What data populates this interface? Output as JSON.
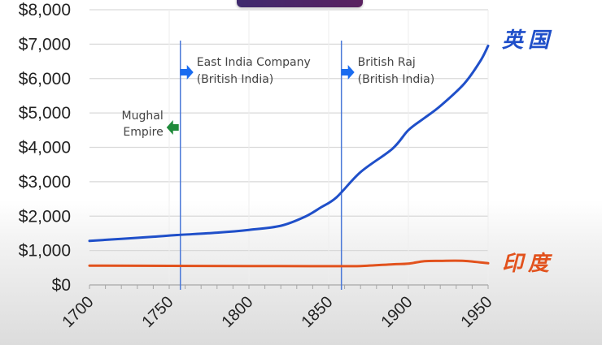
{
  "chart_data": {
    "type": "line",
    "title": "",
    "xlabel": "",
    "ylabel": "",
    "x_ticks": [
      "1700",
      "1750",
      "1800",
      "1850",
      "1900",
      "1950"
    ],
    "y_ticks": [
      "$0",
      "$1,000",
      "$2,000",
      "$3,000",
      "$4,000",
      "$5,000",
      "$6,000",
      "$7,000",
      "$8,000"
    ],
    "xlim": [
      1700,
      1950
    ],
    "ylim": [
      0,
      8000
    ],
    "grid": true,
    "series": [
      {
        "name": "英国",
        "color": "#1f4fc9",
        "x": [
          1700,
          1720,
          1740,
          1755,
          1780,
          1800,
          1820,
          1835,
          1845,
          1855,
          1870,
          1890,
          1900,
          1910,
          1920,
          1935,
          1945,
          1950
        ],
        "values": [
          1280,
          1340,
          1400,
          1450,
          1520,
          1600,
          1720,
          1980,
          2250,
          2550,
          3280,
          3960,
          4500,
          4850,
          5200,
          5850,
          6500,
          6950
        ]
      },
      {
        "name": "印度",
        "color": "#e2521d",
        "x": [
          1700,
          1750,
          1800,
          1850,
          1870,
          1890,
          1900,
          1910,
          1920,
          1935,
          1950
        ],
        "values": [
          560,
          555,
          550,
          545,
          550,
          600,
          620,
          690,
          700,
          700,
          630
        ]
      }
    ],
    "vertical_markers": [
      {
        "x": 1757,
        "label_right": [
          "East India Company",
          "(British India)"
        ],
        "arrow_right_color": "#1a6cf0",
        "label_left": [
          "Mughal",
          "Empire"
        ],
        "arrow_left_color": "#1f8a3a"
      },
      {
        "x": 1858,
        "label_right": [
          "British Raj",
          "(British India)"
        ],
        "arrow_right_color": "#1a6cf0"
      }
    ],
    "legend": {
      "position": "right-inline",
      "entries": [
        "英国",
        "印度"
      ]
    }
  }
}
